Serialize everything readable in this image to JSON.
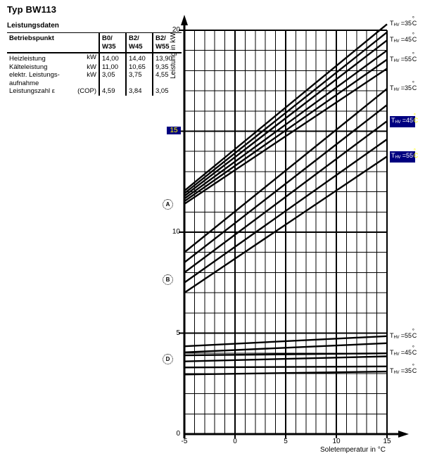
{
  "title": "Typ BW113",
  "table": {
    "title": "Leistungsdaten",
    "header": {
      "col1": "Betriebspunkt",
      "cols": [
        [
          "B0/",
          "W35"
        ],
        [
          "B2/",
          "W45"
        ],
        [
          "B2/",
          "W55"
        ]
      ]
    },
    "rows": [
      {
        "label": "Heizleistung",
        "unit": "kW",
        "values": [
          "14,00",
          "14,40",
          "13,90"
        ]
      },
      {
        "label": "Kälteleistung",
        "unit": "kW",
        "values": [
          "11,00",
          "10,65",
          "9,35"
        ]
      },
      {
        "label": "elektr. Leistungs-\naufnahme",
        "unit": "kW",
        "values": [
          "3,05",
          "3,75",
          "4,55"
        ]
      },
      {
        "label": "Leistungszahl ε",
        "unit": "(COP)",
        "values": [
          "4,59",
          "3,84",
          "3,05"
        ]
      }
    ]
  },
  "colors": {
    "ink": "#000000",
    "highlight_bg": "#000080",
    "highlight_text": "#ffffff",
    "highlight_accent": "#ffff00"
  },
  "chart_data": {
    "type": "line",
    "xlabel": "Soletemperatur in °C",
    "ylabel": "Leistung in kW",
    "xlim": [
      -5,
      15
    ],
    "ylim": [
      0,
      20
    ],
    "minor_step_x": 1,
    "minor_step_y": 1,
    "x_ticks": [
      {
        "v": -5,
        "label": "-5"
      },
      {
        "v": 0,
        "label": "0"
      },
      {
        "v": 5,
        "label": "5"
      },
      {
        "v": 10,
        "label": "10"
      },
      {
        "v": 15,
        "label": "15"
      }
    ],
    "y_ticks": [
      {
        "v": 0,
        "label": "0"
      },
      {
        "v": 5,
        "label": "5"
      },
      {
        "v": 10,
        "label": "10"
      },
      {
        "v": 15,
        "label": "15",
        "highlight": true
      },
      {
        "v": 20,
        "label": "20"
      }
    ],
    "label_format": {
      "prefix": "T",
      "sub": "HV",
      "eq": " =",
      "deg": "°",
      "unit": "C"
    },
    "groups": [
      {
        "marker": {
          "letter": "A",
          "y": 11.4
        },
        "lines": [
          {
            "thv": "35",
            "y_start": 12.05,
            "y_end": 20.3,
            "labeled": true,
            "highlight": false
          },
          {
            "y_start": 11.92,
            "y_end": 19.9
          },
          {
            "thv": "45",
            "y_start": 11.79,
            "y_end": 19.5,
            "labeled": true,
            "highlight": false
          },
          {
            "y_start": 11.66,
            "y_end": 19.0
          },
          {
            "thv": "55",
            "y_start": 11.53,
            "y_end": 18.55,
            "labeled": true,
            "highlight": false
          },
          {
            "y_start": 11.4,
            "y_end": 18.1
          }
        ]
      },
      {
        "marker": {
          "letter": "B",
          "y": 7.65
        },
        "lines": [
          {
            "thv": "35",
            "y_start": 9.0,
            "y_end": 17.1,
            "labeled": true,
            "highlight": false
          },
          {
            "y_start": 8.5,
            "y_end": 16.3
          },
          {
            "thv": "45",
            "y_start": 8.0,
            "y_end": 15.5,
            "labeled": true,
            "highlight": true
          },
          {
            "y_start": 7.5,
            "y_end": 14.6
          },
          {
            "thv": "55",
            "y_start": 7.0,
            "y_end": 13.75,
            "labeled": true,
            "highlight": true
          }
        ]
      },
      {
        "marker": {
          "letter": "D",
          "y": 3.73
        },
        "lines": [
          {
            "thv": "55",
            "y_start": 4.35,
            "y_end": 4.85,
            "labeled": true,
            "highlight": false
          },
          {
            "y_start": 4.05,
            "y_end": 4.5
          },
          {
            "thv": "45",
            "y_start": 3.9,
            "y_end": 4.0,
            "labeled": true,
            "highlight": false
          },
          {
            "y_start": 3.6,
            "y_end": 3.85
          },
          {
            "y_start": 3.3,
            "y_end": 3.35
          },
          {
            "thv": "35",
            "y_start": 2.95,
            "y_end": 3.1,
            "labeled": true,
            "highlight": false
          }
        ]
      }
    ]
  }
}
